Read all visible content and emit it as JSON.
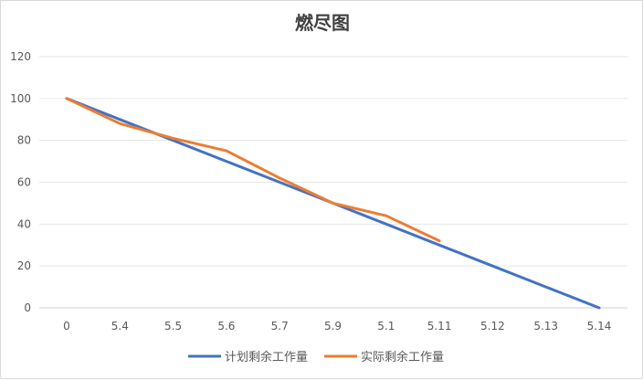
{
  "chart_data": {
    "type": "line",
    "title": "燃尽图",
    "categories": [
      "0",
      "5.4",
      "5.5",
      "5.6",
      "5.7",
      "5.9",
      "5.1",
      "5.11",
      "5.12",
      "5.13",
      "5.14"
    ],
    "ylim": [
      0,
      120
    ],
    "yticks": [
      0,
      20,
      40,
      60,
      80,
      100,
      120
    ],
    "grid": true,
    "legend_position": "bottom",
    "series": [
      {
        "name": "计划剩余工作量",
        "color": "#4472C4",
        "values": [
          100,
          90,
          80,
          70,
          60,
          50,
          40,
          30,
          20,
          10,
          0
        ]
      },
      {
        "name": "实际剩余工作量",
        "color": "#ED7D31",
        "values": [
          100,
          88,
          81,
          75,
          62,
          50,
          44,
          32,
          null,
          null,
          null
        ]
      }
    ]
  }
}
